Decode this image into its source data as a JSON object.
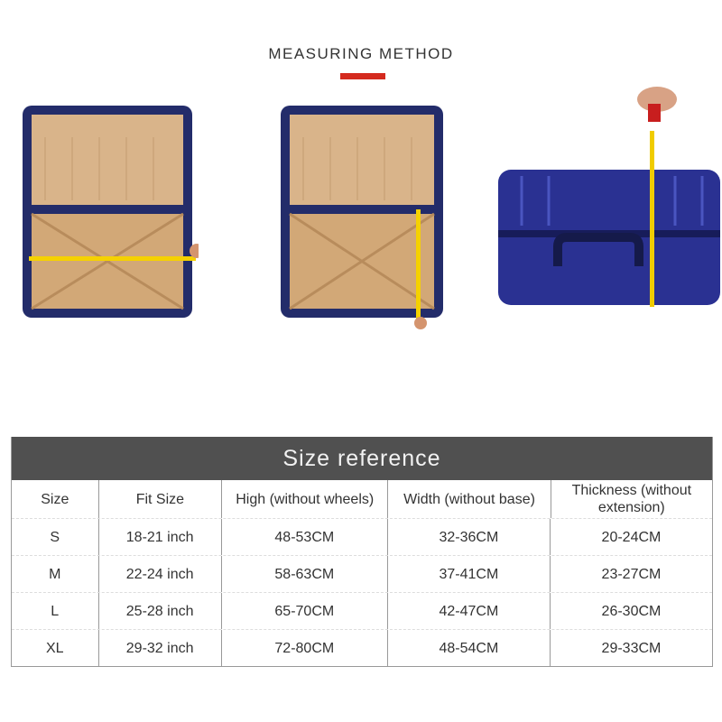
{
  "header": {
    "title": "MEASURING METHOD",
    "accent": "#d42a1e"
  },
  "images": [
    {
      "name": "open-suitcase-width-measure"
    },
    {
      "name": "open-suitcase-height-measure"
    },
    {
      "name": "closed-suitcase-thickness-measure"
    }
  ],
  "table": {
    "title": "Size reference",
    "columns": [
      "Size",
      "Fit Size",
      "High (without wheels)",
      "Width (without base)",
      "Thickness (without extension)"
    ],
    "rows": [
      [
        "S",
        "18-21 inch",
        "48-53CM",
        "32-36CM",
        "20-24CM"
      ],
      [
        "M",
        "22-24 inch",
        "58-63CM",
        "37-41CM",
        "23-27CM"
      ],
      [
        "L",
        "25-28 inch",
        "65-70CM",
        "42-47CM",
        "26-30CM"
      ],
      [
        "XL",
        "29-32 inch",
        "72-80CM",
        "48-54CM",
        "29-33CM"
      ]
    ]
  }
}
